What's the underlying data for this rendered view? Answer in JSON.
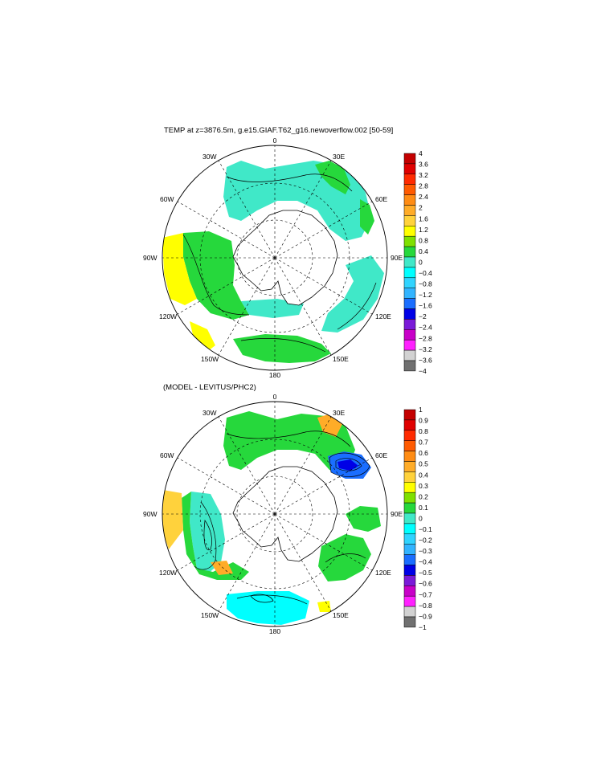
{
  "panels": [
    {
      "title": "TEMP at z=3876.5m, g.e15.GIAF.T62_g16.newoverflow.002 [50-59]",
      "colorbar": {
        "labels": [
          "4",
          "3.6",
          "3.2",
          "2.8",
          "2.4",
          "2",
          "1.6",
          "1.2",
          "0.8",
          "0.4",
          "0",
          "−0.4",
          "−0.8",
          "−1.2",
          "−1.6",
          "−2",
          "−2.4",
          "−2.8",
          "−3.2",
          "−3.6",
          "−4"
        ],
        "colors": [
          "#c40000",
          "#e00000",
          "#ff2a00",
          "#ff5a00",
          "#ff8c14",
          "#ffac28",
          "#ffd23c",
          "#ffff00",
          "#7fe000",
          "#26d83c",
          "#40e8c8",
          "#00ffff",
          "#30d4ff",
          "#32b4ff",
          "#1a6eff",
          "#0000e6",
          "#7a1ad8",
          "#c800c8",
          "#ff20ff",
          "#d2d2d2",
          "#707070"
        ]
      },
      "lon_labels": {
        "0": "0",
        "30E": "30E",
        "60E": "60E",
        "90E": "90E",
        "120E": "120E",
        "150E": "150E",
        "180": "180",
        "150W": "150W",
        "120W": "120W",
        "90W": "90W",
        "60W": "60W",
        "30W": "30W"
      }
    },
    {
      "title": "(MODEL - LEVITUS/PHC2)",
      "colorbar": {
        "labels": [
          "1",
          "0.9",
          "0.8",
          "0.7",
          "0.6",
          "0.5",
          "0.4",
          "0.3",
          "0.2",
          "0.1",
          "0",
          "−0.1",
          "−0.2",
          "−0.3",
          "−0.4",
          "−0.5",
          "−0.6",
          "−0.7",
          "−0.8",
          "−0.9",
          "−1"
        ],
        "colors": [
          "#c40000",
          "#e00000",
          "#ff2a00",
          "#ff5a00",
          "#ff8c14",
          "#ffac28",
          "#ffd23c",
          "#ffff00",
          "#7fe000",
          "#26d83c",
          "#40e8c8",
          "#00ffff",
          "#30d4ff",
          "#32b4ff",
          "#1a6eff",
          "#0000e6",
          "#7a1ad8",
          "#c800c8",
          "#ff20ff",
          "#d2d2d2",
          "#707070"
        ]
      },
      "lon_labels": {
        "0": "0",
        "30E": "30E",
        "60E": "60E",
        "90E": "90E",
        "120E": "120E",
        "150E": "150E",
        "180": "180",
        "150W": "150W",
        "120W": "120W",
        "90W": "90W",
        "60W": "60W",
        "30W": "30W"
      }
    }
  ]
}
